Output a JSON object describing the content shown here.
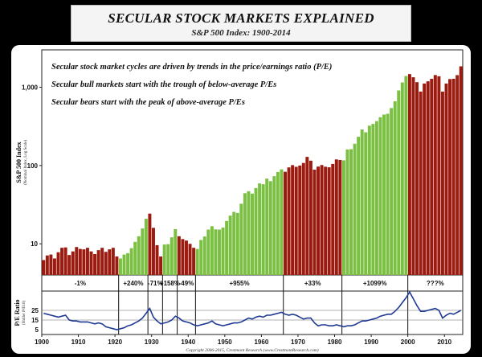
{
  "chart_data": {
    "type": "bar",
    "title": "SECULAR STOCK MARKETS EXPLAINED",
    "subtitle": "S&P 500 Index: 1900-2014",
    "ylabel": "S&P 500 Index",
    "ylabel_sub": "(Nominal Index, Log Scale)",
    "y_scale": "log",
    "ylim": [
      4,
      3000
    ],
    "y_ticks": [
      10,
      100,
      1000
    ],
    "y_tick_labels": [
      "10",
      "100",
      "1,000"
    ],
    "x_ticks": [
      1900,
      1910,
      1920,
      1930,
      1940,
      1950,
      1960,
      1970,
      1980,
      1990,
      2000,
      2010
    ],
    "x_tick_labels": [
      "1900",
      "1910",
      "1920",
      "1930",
      "1940",
      "1950",
      "1960",
      "1970",
      "1980",
      "1990",
      "2000",
      "2010"
    ],
    "xlim": [
      1900,
      2015
    ],
    "annotations": [
      "Secular stock market cycles are driven by trends in the price/earnings ratio (P/E)",
      "Secular bull markets start with the trough of below-average P/Es",
      "Secular bears start with the peak of above-average P/Es"
    ],
    "legend_colors": {
      "bull": "#7bc043",
      "bear": "#9b1b10"
    },
    "years": [
      1900,
      1901,
      1902,
      1903,
      1904,
      1905,
      1906,
      1907,
      1908,
      1909,
      1910,
      1911,
      1912,
      1913,
      1914,
      1915,
      1916,
      1917,
      1918,
      1919,
      1920,
      1921,
      1922,
      1923,
      1924,
      1925,
      1926,
      1927,
      1928,
      1929,
      1930,
      1931,
      1932,
      1933,
      1934,
      1935,
      1936,
      1937,
      1938,
      1939,
      1940,
      1941,
      1942,
      1943,
      1944,
      1945,
      1946,
      1947,
      1948,
      1949,
      1950,
      1951,
      1952,
      1953,
      1954,
      1955,
      1956,
      1957,
      1958,
      1959,
      1960,
      1961,
      1962,
      1963,
      1964,
      1965,
      1966,
      1967,
      1968,
      1969,
      1970,
      1971,
      1972,
      1973,
      1974,
      1975,
      1976,
      1977,
      1978,
      1979,
      1980,
      1981,
      1982,
      1983,
      1984,
      1985,
      1986,
      1987,
      1988,
      1989,
      1990,
      1991,
      1992,
      1993,
      1994,
      1995,
      1996,
      1997,
      1998,
      1999,
      2000,
      2001,
      2002,
      2003,
      2004,
      2005,
      2006,
      2007,
      2008,
      2009,
      2010,
      2011,
      2012,
      2013,
      2014
    ],
    "values": [
      6.2,
      7.1,
      7.3,
      6.5,
      7.8,
      8.9,
      9.0,
      7.2,
      8.0,
      9.1,
      8.6,
      8.5,
      8.9,
      8.0,
      7.4,
      8.3,
      8.9,
      7.9,
      8.5,
      8.9,
      6.9,
      6.5,
      7.3,
      7.6,
      8.8,
      10.6,
      12.5,
      15.7,
      20.9,
      24.3,
      16.0,
      9.6,
      6.9,
      9.8,
      9.9,
      12.1,
      15.4,
      12.5,
      11.5,
      11.0,
      10.0,
      8.9,
      8.6,
      11.2,
      12.4,
      15.2,
      16.8,
      15.3,
      15.2,
      16.1,
      19.6,
      22.9,
      25.6,
      24.8,
      32.5,
      44.3,
      47.0,
      43.8,
      51.6,
      59.1,
      57.7,
      68.0,
      63.1,
      73.0,
      82.7,
      89.4,
      83.2,
      94.6,
      101.1,
      96.3,
      100.0,
      107.8,
      128.9,
      115.3,
      88.6,
      96.9,
      101.4,
      96.5,
      94.9,
      104.7,
      119.7,
      117.6,
      116.5,
      160.5,
      161.7,
      189.8,
      233.0,
      288.5,
      265.6,
      322.5,
      339.7,
      368.5,
      414.1,
      447.3,
      457.8,
      542.0,
      661.6,
      909.0,
      1150.0,
      1390.0,
      1470.0,
      1340.0,
      1160.0,
      880.0,
      1115.0,
      1190.0,
      1280.0,
      1430.0,
      1380.0,
      880.0,
      1115.0,
      1270.0,
      1282.0,
      1426.0,
      1848.0
    ],
    "regimes": [
      {
        "start": 1900,
        "end": 1920,
        "type": "bear",
        "label": "-1%"
      },
      {
        "start": 1921,
        "end": 1928,
        "type": "bull",
        "label": "+240%"
      },
      {
        "start": 1929,
        "end": 1932,
        "type": "bear",
        "label": "-71%"
      },
      {
        "start": 1933,
        "end": 1936,
        "type": "bull",
        "label": "+158%"
      },
      {
        "start": 1937,
        "end": 1941,
        "type": "bear",
        "label": "-49%"
      },
      {
        "start": 1942,
        "end": 1965,
        "type": "bull",
        "label": "+955%"
      },
      {
        "start": 1966,
        "end": 1981,
        "type": "bear",
        "label": "+33%"
      },
      {
        "start": 1982,
        "end": 1999,
        "type": "bull",
        "label": "+1099%"
      },
      {
        "start": 2000,
        "end": 2014,
        "type": "bear",
        "label": "???%"
      }
    ],
    "pe_panel": {
      "ylabel": "P/E Ratio",
      "ylabel_sub": "(Shiller P/E10)",
      "y_ticks": [
        5,
        15,
        25
      ],
      "y_tick_labels": [
        "5",
        "15",
        "25"
      ],
      "ylim": [
        0,
        45
      ],
      "reference_lines": [
        15,
        25
      ],
      "series": [
        {
          "values": [
            22,
            21,
            20,
            19,
            18,
            19,
            20,
            15,
            14,
            14,
            13,
            13,
            13,
            12,
            11,
            12,
            11,
            8,
            7,
            6,
            5,
            6,
            7,
            9,
            10,
            12,
            14,
            17,
            22,
            27,
            18,
            14,
            11,
            12,
            13,
            15,
            19,
            17,
            14,
            13,
            12,
            10,
            9,
            10,
            11,
            12,
            14,
            11,
            10,
            9,
            10,
            11,
            12,
            12,
            13,
            15,
            17,
            16,
            18,
            19,
            18,
            20,
            20,
            21,
            22,
            23,
            21,
            20,
            21,
            20,
            18,
            16,
            17,
            17,
            12,
            9,
            10,
            10,
            9,
            9,
            10,
            9,
            8,
            9,
            9,
            10,
            12,
            14,
            14,
            15,
            16,
            17,
            19,
            20,
            21,
            21,
            24,
            28,
            33,
            38,
            44,
            37,
            30,
            24,
            24,
            25,
            26,
            27,
            25,
            17,
            20,
            22,
            21,
            23,
            25
          ]
        }
      ]
    },
    "copyright": "Copyright 2006-2015, Crestmont Research (www.CrestmontResearch.com)"
  }
}
